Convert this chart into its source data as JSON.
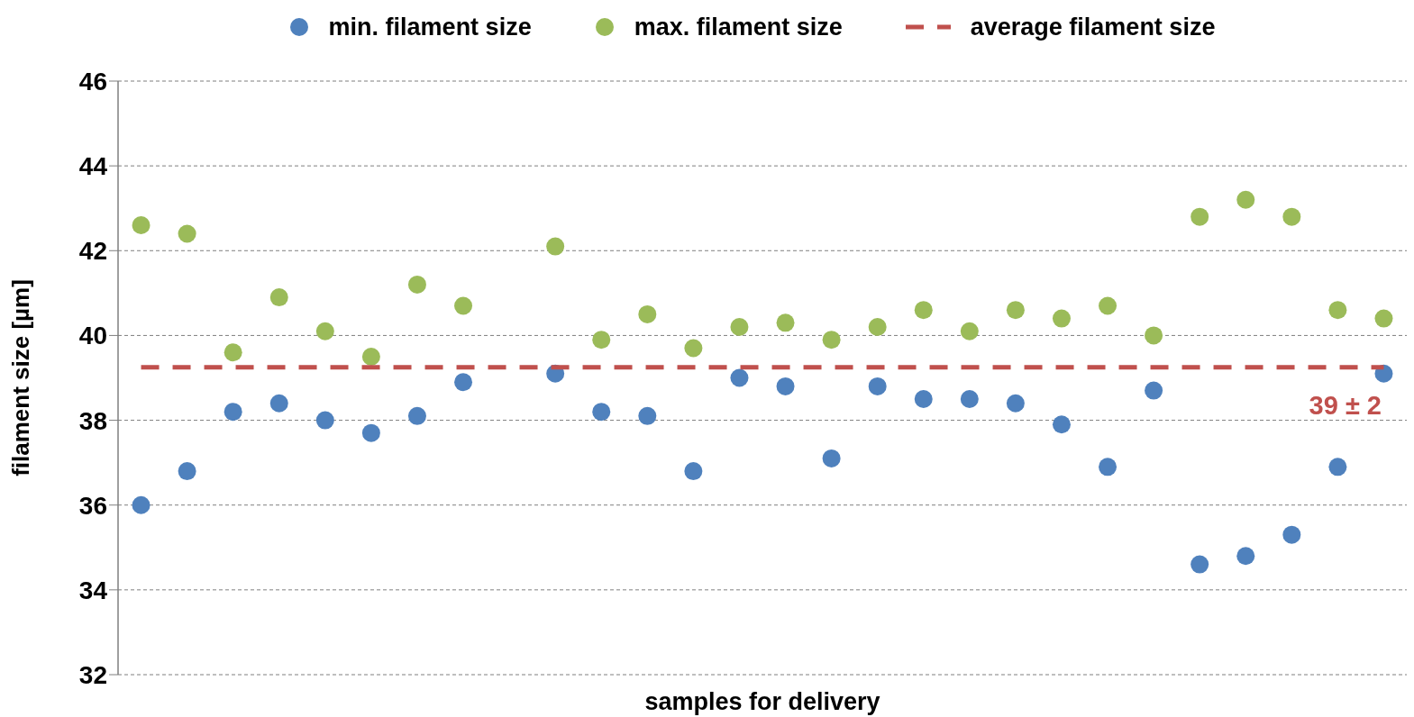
{
  "chart_data": {
    "type": "scatter",
    "xlabel": "samples for delivery",
    "ylabel": "filament size [µm]",
    "categories": [
      null,
      null,
      null,
      null,
      null,
      null,
      null,
      null,
      null,
      null,
      null,
      null,
      null,
      null,
      null,
      null,
      null,
      null,
      null,
      null,
      null,
      null,
      null,
      null,
      null,
      null,
      null,
      null
    ],
    "series": [
      {
        "name": "min. filament size",
        "color": "#4f81bd",
        "marker": "circle",
        "values": [
          36.0,
          36.8,
          38.2,
          38.4,
          38.0,
          37.7,
          38.1,
          38.9,
          null,
          39.1,
          38.2,
          38.1,
          36.8,
          39.0,
          38.8,
          37.1,
          38.8,
          38.5,
          38.5,
          38.4,
          37.9,
          36.9,
          38.7,
          34.6,
          34.8,
          35.3,
          36.9,
          39.1
        ]
      },
      {
        "name": "max. filament size",
        "color": "#9bbb59",
        "marker": "circle",
        "values": [
          42.6,
          42.4,
          39.6,
          40.9,
          40.1,
          39.5,
          41.2,
          40.7,
          null,
          42.1,
          39.9,
          40.5,
          39.7,
          40.2,
          40.3,
          39.9,
          40.2,
          40.6,
          40.1,
          40.6,
          40.4,
          40.7,
          40.0,
          42.8,
          43.2,
          42.8,
          40.6,
          40.4
        ]
      },
      {
        "name": "average filament size",
        "type": "line",
        "line_style": "dashed",
        "color": "#c0504d",
        "values": [
          39.25,
          39.25,
          39.25,
          39.25,
          39.25,
          39.25,
          39.25,
          39.25,
          39.25,
          39.25,
          39.25,
          39.25,
          39.25,
          39.25,
          39.25,
          39.25,
          39.25,
          39.25,
          39.25,
          39.25,
          39.25,
          39.25,
          39.25,
          39.25,
          39.25,
          39.25,
          39.25,
          39.25
        ]
      }
    ],
    "ylim": [
      32,
      46
    ],
    "yticks": [
      32,
      34,
      36,
      38,
      40,
      42,
      44,
      46
    ],
    "grid": "y",
    "legend": "top",
    "annotations": [
      "39 ± 2"
    ]
  }
}
